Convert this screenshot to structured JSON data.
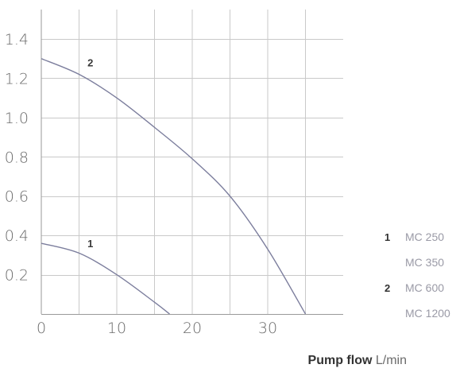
{
  "chart_data": {
    "type": "line",
    "x_ticks": [
      0,
      10,
      20,
      30
    ],
    "y_ticks": [
      "0.2",
      "0.4",
      "0.6",
      "0.8",
      "1.0",
      "1.2",
      "1.4"
    ],
    "xlim": [
      0,
      40
    ],
    "ylim": [
      0,
      1.55
    ],
    "grid": true,
    "x_grid_step": 5,
    "y_grid_step": 0.2,
    "series": [
      {
        "name": "1",
        "color": "#7c7e9d",
        "points": [
          [
            0,
            0.36
          ],
          [
            5,
            0.31
          ],
          [
            10,
            0.2
          ],
          [
            15,
            0.06
          ],
          [
            17,
            0.0
          ]
        ]
      },
      {
        "name": "2",
        "color": "#7c7e9d",
        "points": [
          [
            0,
            1.3
          ],
          [
            5,
            1.22
          ],
          [
            10,
            1.1
          ],
          [
            15,
            0.95
          ],
          [
            20,
            0.79
          ],
          [
            25,
            0.6
          ],
          [
            30,
            0.33
          ],
          [
            35,
            0.0
          ]
        ]
      }
    ],
    "curve_labels": [
      {
        "text": "1",
        "x": 6.5,
        "y": 0.34
      },
      {
        "text": "2",
        "x": 6.5,
        "y": 1.26
      }
    ],
    "xlabel": {
      "bold": "Pump flow",
      "unit": "L/min"
    }
  },
  "legend": [
    {
      "num": "1",
      "label": "MC 250"
    },
    {
      "num": "",
      "label": "MC 350"
    },
    {
      "num": "2",
      "label": "MC 600"
    },
    {
      "num": "",
      "label": "MC 1200"
    }
  ]
}
